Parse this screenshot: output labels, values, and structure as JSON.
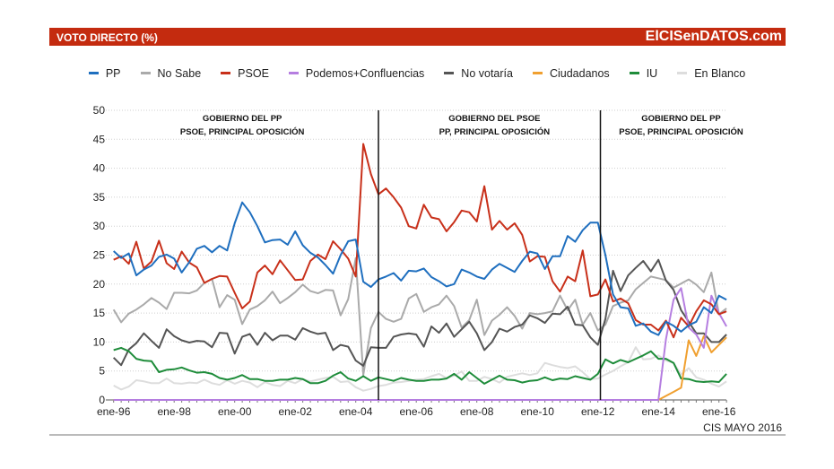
{
  "header": {
    "title": "VOTO DIRECTO (%)",
    "brand": "ElCISenDATOS.com"
  },
  "footer": {
    "source": "CIS MAYO 2016"
  },
  "chart_data": {
    "type": "line",
    "title": "VOTO DIRECTO (%)",
    "ylim": [
      0,
      50
    ],
    "yticks": [
      "0",
      "5",
      "10",
      "15",
      "20",
      "25",
      "30",
      "35",
      "40",
      "45",
      "50"
    ],
    "xticks": [
      {
        "label": "ene-96",
        "date": "1996-01"
      },
      {
        "label": "ene-98",
        "date": "1998-01"
      },
      {
        "label": "ene-00",
        "date": "2000-01"
      },
      {
        "label": "ene-02",
        "date": "2002-01"
      },
      {
        "label": "ene-04",
        "date": "2004-01"
      },
      {
        "label": "ene-06",
        "date": "2006-01"
      },
      {
        "label": "ene-08",
        "date": "2008-01"
      },
      {
        "label": "ene-10",
        "date": "2010-01"
      },
      {
        "label": "ene-12",
        "date": "2012-01"
      },
      {
        "label": "ene-14",
        "date": "2014-01"
      },
      {
        "label": "ene-16",
        "date": "2016-01"
      }
    ],
    "grid": true,
    "legend_position": "top",
    "x": [
      "1996-01",
      "1996-04",
      "1996-07",
      "1996-10",
      "1997-01",
      "1997-04",
      "1997-07",
      "1997-10",
      "1998-01",
      "1998-04",
      "1998-07",
      "1998-10",
      "1999-01",
      "1999-04",
      "1999-07",
      "1999-10",
      "2000-01",
      "2000-04",
      "2000-07",
      "2000-10",
      "2001-01",
      "2001-04",
      "2001-07",
      "2001-10",
      "2002-01",
      "2002-04",
      "2002-07",
      "2002-10",
      "2003-01",
      "2003-04",
      "2003-07",
      "2003-10",
      "2004-01",
      "2004-04",
      "2004-07",
      "2004-10",
      "2005-01",
      "2005-04",
      "2005-07",
      "2005-10",
      "2006-01",
      "2006-04",
      "2006-07",
      "2006-10",
      "2007-01",
      "2007-04",
      "2007-07",
      "2007-10",
      "2008-01",
      "2008-04",
      "2008-07",
      "2008-10",
      "2009-01",
      "2009-04",
      "2009-07",
      "2009-10",
      "2010-01",
      "2010-04",
      "2010-07",
      "2010-10",
      "2011-01",
      "2011-04",
      "2011-07",
      "2011-10",
      "2012-01",
      "2012-04",
      "2012-07",
      "2012-10",
      "2013-01",
      "2013-04",
      "2013-07",
      "2013-10",
      "2014-01",
      "2014-04",
      "2014-07",
      "2014-10",
      "2015-01",
      "2015-04",
      "2015-07",
      "2015-10",
      "2016-01",
      "2016-04"
    ],
    "series": [
      {
        "name": "PP",
        "color": "#1f6fbf",
        "values": [
          25.7,
          24.5,
          25.3,
          21.5,
          22.5,
          23.2,
          24.7,
          25.1,
          24.4,
          22.0,
          23.8,
          26.1,
          26.6,
          25.5,
          26.6,
          25.8,
          30.5,
          34.1,
          32.4,
          30.0,
          27.2,
          27.6,
          27.7,
          26.8,
          29.1,
          26.7,
          25.4,
          24.6,
          23.3,
          21.8,
          25.0,
          27.4,
          27.7,
          20.4,
          19.5,
          20.8,
          21.3,
          21.9,
          20.6,
          22.3,
          22.2,
          22.7,
          21.2,
          20.5,
          19.6,
          20.0,
          22.5,
          22.0,
          21.3,
          20.9,
          22.5,
          23.5,
          22.8,
          22.1,
          24.0,
          25.6,
          25.3,
          22.6,
          24.8,
          24.8,
          28.3,
          27.3,
          29.3,
          30.6,
          30.6,
          25.0,
          18.2,
          16.0,
          15.8,
          12.8,
          13.2,
          11.8,
          11.2,
          13.5,
          12.8,
          11.8,
          12.9,
          13.5,
          16.0,
          15.0,
          18.0,
          17.3
        ]
      },
      {
        "name": "No Sabe",
        "color": "#aaaaaa",
        "values": [
          15.6,
          13.4,
          14.9,
          15.6,
          16.5,
          17.6,
          16.8,
          15.7,
          18.5,
          18.5,
          18.4,
          18.9,
          20.2,
          20.9,
          16.0,
          18.1,
          17.3,
          13.1,
          15.6,
          16.2,
          17.2,
          18.7,
          16.7,
          17.6,
          18.6,
          19.9,
          18.8,
          18.4,
          19.0,
          18.9,
          14.6,
          17.4,
          24.5,
          4.3,
          12.4,
          15.2,
          14.0,
          13.5,
          14.0,
          17.5,
          18.3,
          15.2,
          16.0,
          16.5,
          18.0,
          16.2,
          12.5,
          13.8,
          17.3,
          11.2,
          13.7,
          14.7,
          16.0,
          14.5,
          12.3,
          15.0,
          14.8,
          15.0,
          15.3,
          18.0,
          15.5,
          17.3,
          13.0,
          15.0,
          12.0,
          13.0,
          16.2,
          16.8,
          17.2,
          19.1,
          20.2,
          21.3,
          21.0,
          20.7,
          19.4,
          20.1,
          20.8,
          19.9,
          18.6,
          22.0,
          14.8,
          15.8
        ]
      },
      {
        "name": "PSOE",
        "color": "#c8301a",
        "values": [
          24.2,
          24.8,
          23.5,
          27.3,
          22.7,
          23.9,
          27.5,
          23.6,
          22.6,
          25.6,
          23.7,
          22.9,
          20.2,
          20.9,
          21.4,
          21.3,
          18.5,
          15.8,
          17.0,
          22.0,
          23.2,
          21.7,
          24.1,
          22.4,
          20.7,
          20.8,
          24.0,
          25.1,
          24.3,
          27.4,
          26.0,
          24.4,
          21.3,
          44.2,
          39.0,
          35.5,
          36.5,
          35.0,
          33.2,
          30.0,
          29.6,
          33.7,
          31.5,
          31.2,
          29.1,
          30.7,
          32.7,
          32.4,
          30.8,
          36.9,
          29.4,
          30.9,
          29.4,
          30.5,
          28.5,
          23.9,
          24.8,
          24.7,
          20.5,
          18.7,
          21.3,
          20.5,
          25.8,
          17.9,
          18.2,
          20.8,
          17.0,
          17.5,
          16.7,
          13.8,
          13.0,
          13.0,
          12.0,
          13.7,
          10.8,
          14.2,
          12.7,
          15.3,
          17.2,
          16.5,
          14.8,
          15.3
        ]
      },
      {
        "name": "Podemos+Confluencias",
        "color": "#b57ee0",
        "values": [
          0,
          0,
          0,
          0,
          0,
          0,
          0,
          0,
          0,
          0,
          0,
          0,
          0,
          0,
          0,
          0,
          0,
          0,
          0,
          0,
          0,
          0,
          0,
          0,
          0,
          0,
          0,
          0,
          0,
          0,
          0,
          0,
          0,
          0,
          0,
          0,
          0,
          0,
          0,
          0,
          0,
          0,
          0,
          0,
          0,
          0,
          0,
          0,
          0,
          0,
          0,
          0,
          0,
          0,
          0,
          0,
          0,
          0,
          0,
          0,
          0,
          0,
          0,
          0,
          0,
          0,
          0,
          0,
          0,
          0,
          0,
          0,
          0,
          10.5,
          17.3,
          19.3,
          12.5,
          11.3,
          9.0,
          18.0,
          15.0,
          12.7
        ]
      },
      {
        "name": "No votaría",
        "color": "#555555",
        "values": [
          7.3,
          6.0,
          8.7,
          9.8,
          11.5,
          10.2,
          9.0,
          12.2,
          11.0,
          10.3,
          9.9,
          10.2,
          10.1,
          9.1,
          11.6,
          11.5,
          8.0,
          10.9,
          11.4,
          9.5,
          11.6,
          10.3,
          11.1,
          11.1,
          10.4,
          12.4,
          11.8,
          11.4,
          11.6,
          8.6,
          9.5,
          9.2,
          6.8,
          5.9,
          9.1,
          9.0,
          9.0,
          10.9,
          11.3,
          11.5,
          11.3,
          9.2,
          12.7,
          11.6,
          13.2,
          10.9,
          12.2,
          13.5,
          11.5,
          8.6,
          10.0,
          12.3,
          11.8,
          12.6,
          13.0,
          14.6,
          14.1,
          13.3,
          14.9,
          14.8,
          16.1,
          13.0,
          12.9,
          10.8,
          9.5,
          14.0,
          22.3,
          18.8,
          21.5,
          22.8,
          24.0,
          22.2,
          24.2,
          20.6,
          19.0,
          15.5,
          13.5,
          11.5,
          11.5,
          10.0,
          10.0,
          11.3
        ]
      },
      {
        "name": "Ciudadanos",
        "color": "#f0a030",
        "values": [
          0,
          0,
          0,
          0,
          0,
          0,
          0,
          0,
          0,
          0,
          0,
          0,
          0,
          0,
          0,
          0,
          0,
          0,
          0,
          0,
          0,
          0,
          0,
          0,
          0,
          0,
          0,
          0,
          0,
          0,
          0,
          0,
          0,
          0,
          0,
          0,
          0,
          0,
          0,
          0,
          0,
          0,
          0,
          0,
          0,
          0,
          0,
          0,
          0,
          0,
          0,
          0,
          0,
          0,
          0,
          0,
          0,
          0,
          0,
          0,
          0,
          0,
          0,
          0,
          0,
          0,
          0,
          0,
          0,
          0,
          0,
          0,
          0,
          0.7,
          1.4,
          2.1,
          10.3,
          7.6,
          11.0,
          8.2,
          9.5,
          10.8
        ]
      },
      {
        "name": "IU",
        "color": "#1e8c3a",
        "values": [
          8.6,
          9.0,
          8.4,
          7.1,
          6.8,
          6.7,
          4.8,
          5.2,
          5.3,
          5.6,
          5.1,
          4.7,
          4.8,
          4.5,
          3.8,
          3.5,
          3.8,
          4.3,
          3.6,
          3.6,
          3.3,
          3.3,
          3.5,
          3.5,
          3.8,
          3.6,
          2.9,
          2.9,
          3.3,
          4.2,
          4.8,
          3.7,
          3.3,
          4.1,
          3.3,
          3.9,
          3.6,
          3.3,
          3.8,
          3.5,
          3.3,
          3.3,
          3.5,
          3.5,
          3.7,
          4.5,
          3.5,
          4.8,
          3.8,
          2.8,
          3.5,
          4.2,
          3.5,
          3.4,
          3.0,
          3.3,
          3.4,
          3.9,
          3.4,
          3.7,
          3.6,
          4.1,
          3.8,
          3.5,
          4.5,
          7.0,
          6.3,
          6.9,
          6.5,
          7.1,
          7.7,
          8.4,
          7.1,
          7.1,
          6.4,
          3.7,
          3.6,
          3.2,
          3.1,
          3.2,
          3.1,
          4.5
        ]
      },
      {
        "name": "En Blanco",
        "color": "#dddddd",
        "values": [
          2.5,
          1.8,
          2.3,
          3.4,
          3.2,
          2.9,
          2.9,
          3.7,
          2.9,
          2.8,
          3.0,
          2.9,
          3.5,
          2.9,
          2.6,
          3.4,
          2.8,
          3.3,
          3.0,
          2.2,
          3.1,
          2.6,
          2.4,
          3.3,
          2.9,
          3.6,
          3.2,
          3.5,
          3.8,
          4.0,
          3.1,
          3.2,
          2.2,
          1.6,
          1.9,
          2.4,
          2.6,
          3.0,
          3.1,
          3.3,
          3.5,
          3.6,
          4.1,
          4.5,
          3.8,
          4.2,
          4.9,
          3.3,
          3.3,
          4.0,
          3.6,
          3.0,
          4.0,
          4.3,
          4.6,
          4.3,
          4.6,
          6.4,
          6.0,
          5.7,
          5.5,
          5.8,
          4.8,
          3.6,
          3.7,
          4.4,
          5.0,
          5.8,
          6.5,
          9.1,
          7.0,
          7.1,
          7.7,
          6.8,
          6.4,
          4.4,
          5.5,
          3.9,
          3.5,
          2.8,
          2.3,
          3.2
        ]
      }
    ],
    "legend_order": [
      "PP",
      "No Sabe",
      "PSOE",
      "Podemos+Confluencias",
      "No votaría",
      "Ciudadanos",
      "IU",
      "En Blanco"
    ],
    "vertical_lines": [
      "2004-10",
      "2012-02"
    ],
    "annotations": [
      {
        "date": "2000-04",
        "lines": [
          "GOBIERNO DEL PP",
          "PSOE, PRINCIPAL OPOSICIÓN"
        ]
      },
      {
        "date": "2008-08",
        "lines": [
          "GOBIERNO DEL PSOE",
          "PP, PRINCIPAL OPOSICIÓN"
        ]
      },
      {
        "date": "2014-10",
        "lines": [
          "GOBIERNO DEL PP",
          "PSOE, PRINCIPAL OPOSICIÓN"
        ]
      }
    ]
  }
}
